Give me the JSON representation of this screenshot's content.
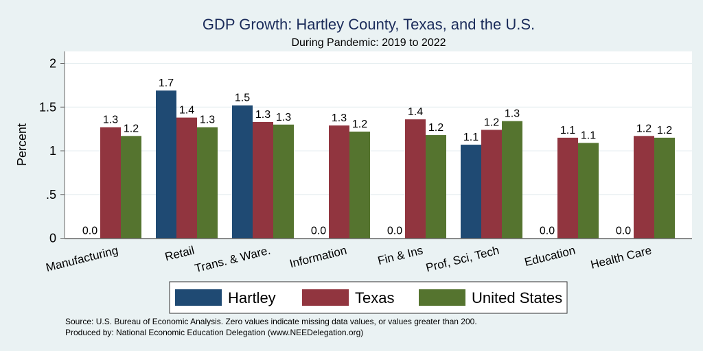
{
  "chart_data": {
    "type": "bar",
    "title": "GDP Growth: Hartley County, Texas, and the U.S.",
    "subtitle": "During Pandemic: 2019 to 2022",
    "xlabel": "",
    "ylabel": "Percent",
    "ylim": [
      0,
      2.15
    ],
    "yticks": [
      0,
      0.5,
      1,
      1.5,
      2
    ],
    "ytick_labels": [
      "0",
      ".5",
      "1",
      "1.5",
      "2"
    ],
    "grid": true,
    "categories": [
      "Manufacturing",
      "Retail",
      "Trans. & Ware.",
      "Information",
      "Fin & Ins",
      "Prof, Sci, Tech",
      "Education",
      "Health Care"
    ],
    "series": [
      {
        "name": "Hartley",
        "color": "#1f4a73",
        "values": [
          0.0,
          1.69,
          1.52,
          0.0,
          0.0,
          1.07,
          0.0,
          0.0
        ],
        "labels": [
          "0.0",
          "1.7",
          "1.5",
          "0.0",
          "0.0",
          "1.1",
          "0.0",
          "0.0"
        ]
      },
      {
        "name": "Texas",
        "color": "#91353f",
        "values": [
          1.27,
          1.38,
          1.33,
          1.29,
          1.36,
          1.24,
          1.15,
          1.17
        ],
        "labels": [
          "1.3",
          "1.4",
          "1.3",
          "1.3",
          "1.4",
          "1.2",
          "1.1",
          "1.2"
        ]
      },
      {
        "name": "United States",
        "color": "#55742f",
        "values": [
          1.17,
          1.27,
          1.3,
          1.22,
          1.18,
          1.34,
          1.09,
          1.15
        ],
        "labels": [
          "1.2",
          "1.3",
          "1.3",
          "1.2",
          "1.2",
          "1.3",
          "1.1",
          "1.2"
        ]
      }
    ],
    "legend_position": "bottom",
    "notes": [
      "Source: U.S. Bureau of Economic Analysis. Zero values indicate missing data values, or values greater than 200.",
      "Produced by: National Economic Education Delegation (www.NEEDelegation.org)"
    ]
  }
}
